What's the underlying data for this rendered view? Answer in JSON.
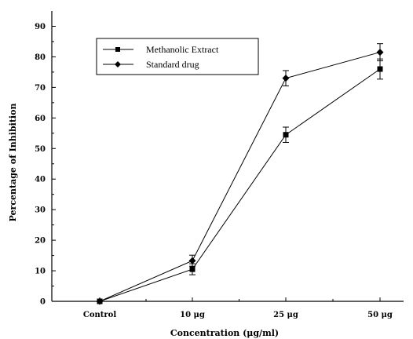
{
  "chart_data": {
    "type": "line",
    "title": "",
    "xlabel": "Concentration (μg/ml)",
    "ylabel": "Percentage of Inhibition",
    "categories": [
      "Control",
      "10 μg",
      "25 μg",
      "50 μg"
    ],
    "ylim": [
      0,
      95
    ],
    "yticks": [
      0,
      10,
      20,
      30,
      40,
      50,
      60,
      70,
      80,
      90
    ],
    "grid": false,
    "legend_position": "top-left",
    "series": [
      {
        "name": "Methanolic Extract",
        "marker": "square",
        "values": [
          0,
          10.5,
          54.5,
          76
        ],
        "errors": [
          0,
          1.8,
          2.5,
          3.3
        ]
      },
      {
        "name": "Standard drug",
        "marker": "diamond",
        "values": [
          0,
          13.3,
          73,
          81.5
        ],
        "errors": [
          0,
          1.8,
          2.5,
          2.8
        ]
      }
    ],
    "colors": {
      "line": "#000000",
      "background": "#ffffff"
    }
  }
}
